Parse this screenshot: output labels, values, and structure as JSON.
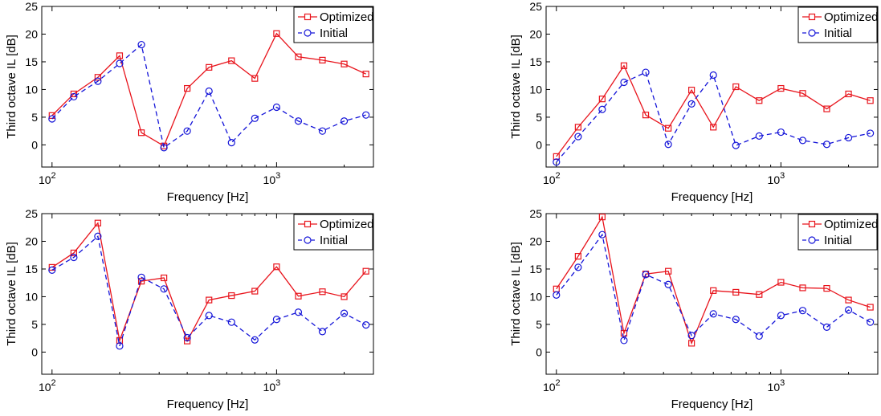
{
  "chart_data": [
    {
      "type": "line",
      "xlabel": "Frequency [Hz]",
      "ylabel": "Third octave IL [dB]",
      "xscale": "log",
      "xlim": [
        90,
        2700
      ],
      "ylim": [
        -4,
        25
      ],
      "yticks": [
        0,
        5,
        10,
        15,
        20,
        25
      ],
      "xticks": [
        {
          "base": "10",
          "exp": "2"
        },
        {
          "base": "10",
          "exp": "3"
        }
      ],
      "grid": false,
      "legend": "top-right",
      "x": [
        100,
        125,
        160,
        200,
        250,
        315,
        400,
        500,
        630,
        800,
        1000,
        1250,
        1600,
        2000,
        2500
      ],
      "series": [
        {
          "name": "Optimized",
          "color": "#e8141c",
          "marker": "square",
          "line": "solid",
          "values": [
            5.3,
            9.2,
            12.2,
            16.1,
            2.2,
            -0.2,
            10.2,
            14.0,
            15.2,
            12.0,
            20.1,
            15.9,
            15.3,
            14.6,
            12.8
          ]
        },
        {
          "name": "Initial",
          "color": "#1414d8",
          "marker": "circle",
          "line": "dashed",
          "values": [
            4.7,
            8.7,
            11.5,
            14.7,
            18.1,
            -0.5,
            2.5,
            9.7,
            0.4,
            4.8,
            6.8,
            4.3,
            2.5,
            4.3,
            5.4
          ]
        }
      ]
    },
    {
      "type": "line",
      "xlabel": "Frequency [Hz]",
      "ylabel": "Third octave IL [dB]",
      "xscale": "log",
      "xlim": [
        90,
        2700
      ],
      "ylim": [
        -4,
        25
      ],
      "yticks": [
        0,
        5,
        10,
        15,
        20,
        25
      ],
      "xticks": [
        {
          "base": "10",
          "exp": "2"
        },
        {
          "base": "10",
          "exp": "3"
        }
      ],
      "grid": false,
      "legend": "top-right",
      "x": [
        100,
        125,
        160,
        200,
        250,
        315,
        400,
        500,
        630,
        800,
        1000,
        1250,
        1600,
        2000,
        2500
      ],
      "series": [
        {
          "name": "Optimized",
          "color": "#e8141c",
          "marker": "square",
          "line": "solid",
          "values": [
            -2.1,
            3.2,
            8.3,
            14.3,
            5.4,
            3.0,
            9.9,
            3.2,
            10.5,
            8.0,
            10.2,
            9.3,
            6.5,
            9.2,
            8.0
          ]
        },
        {
          "name": "Initial",
          "color": "#1414d8",
          "marker": "circle",
          "line": "dashed",
          "values": [
            -3.1,
            1.5,
            6.4,
            11.3,
            13.1,
            0.1,
            7.4,
            12.6,
            -0.1,
            1.6,
            2.3,
            0.8,
            0.1,
            1.3,
            2.1
          ]
        }
      ]
    },
    {
      "type": "line",
      "xlabel": "Frequency [Hz]",
      "ylabel": "Third octave IL [dB]",
      "xscale": "log",
      "xlim": [
        90,
        2700
      ],
      "ylim": [
        -4,
        25
      ],
      "yticks": [
        0,
        5,
        10,
        15,
        20,
        25
      ],
      "xticks": [
        {
          "base": "10",
          "exp": "2"
        },
        {
          "base": "10",
          "exp": "3"
        }
      ],
      "grid": false,
      "legend": "top-right",
      "x": [
        100,
        125,
        160,
        200,
        250,
        315,
        400,
        500,
        630,
        800,
        1000,
        1250,
        1600,
        2000,
        2500
      ],
      "series": [
        {
          "name": "Optimized",
          "color": "#e8141c",
          "marker": "square",
          "line": "solid",
          "values": [
            15.3,
            17.9,
            23.3,
            2.1,
            12.8,
            13.4,
            2.0,
            9.4,
            10.2,
            11.0,
            15.4,
            10.1,
            10.9,
            10.0,
            14.6
          ]
        },
        {
          "name": "Initial",
          "color": "#1414d8",
          "marker": "circle",
          "line": "dashed",
          "values": [
            14.8,
            17.1,
            20.9,
            1.1,
            13.5,
            11.4,
            2.6,
            6.6,
            5.4,
            2.2,
            5.9,
            7.2,
            3.7,
            7.0,
            4.9
          ]
        }
      ]
    },
    {
      "type": "line",
      "xlabel": "Frequency [Hz]",
      "ylabel": "Third octave IL [dB]",
      "xscale": "log",
      "xlim": [
        90,
        2700
      ],
      "ylim": [
        -4,
        25
      ],
      "yticks": [
        0,
        5,
        10,
        15,
        20,
        25
      ],
      "xticks": [
        {
          "base": "10",
          "exp": "2"
        },
        {
          "base": "10",
          "exp": "3"
        }
      ],
      "grid": false,
      "legend": "top-right",
      "x": [
        100,
        125,
        160,
        200,
        250,
        315,
        400,
        500,
        630,
        800,
        1000,
        1250,
        1600,
        2000,
        2500
      ],
      "series": [
        {
          "name": "Optimized",
          "color": "#e8141c",
          "marker": "square",
          "line": "solid",
          "values": [
            11.4,
            17.3,
            24.4,
            3.4,
            14.1,
            14.6,
            1.6,
            11.1,
            10.8,
            10.4,
            12.6,
            11.6,
            11.5,
            9.4,
            8.1
          ]
        },
        {
          "name": "Initial",
          "color": "#1414d8",
          "marker": "circle",
          "line": "dashed",
          "values": [
            10.3,
            15.3,
            21.2,
            2.1,
            14.0,
            12.2,
            3.0,
            6.9,
            5.9,
            2.9,
            6.6,
            7.5,
            4.5,
            7.6,
            5.4
          ]
        }
      ]
    }
  ]
}
